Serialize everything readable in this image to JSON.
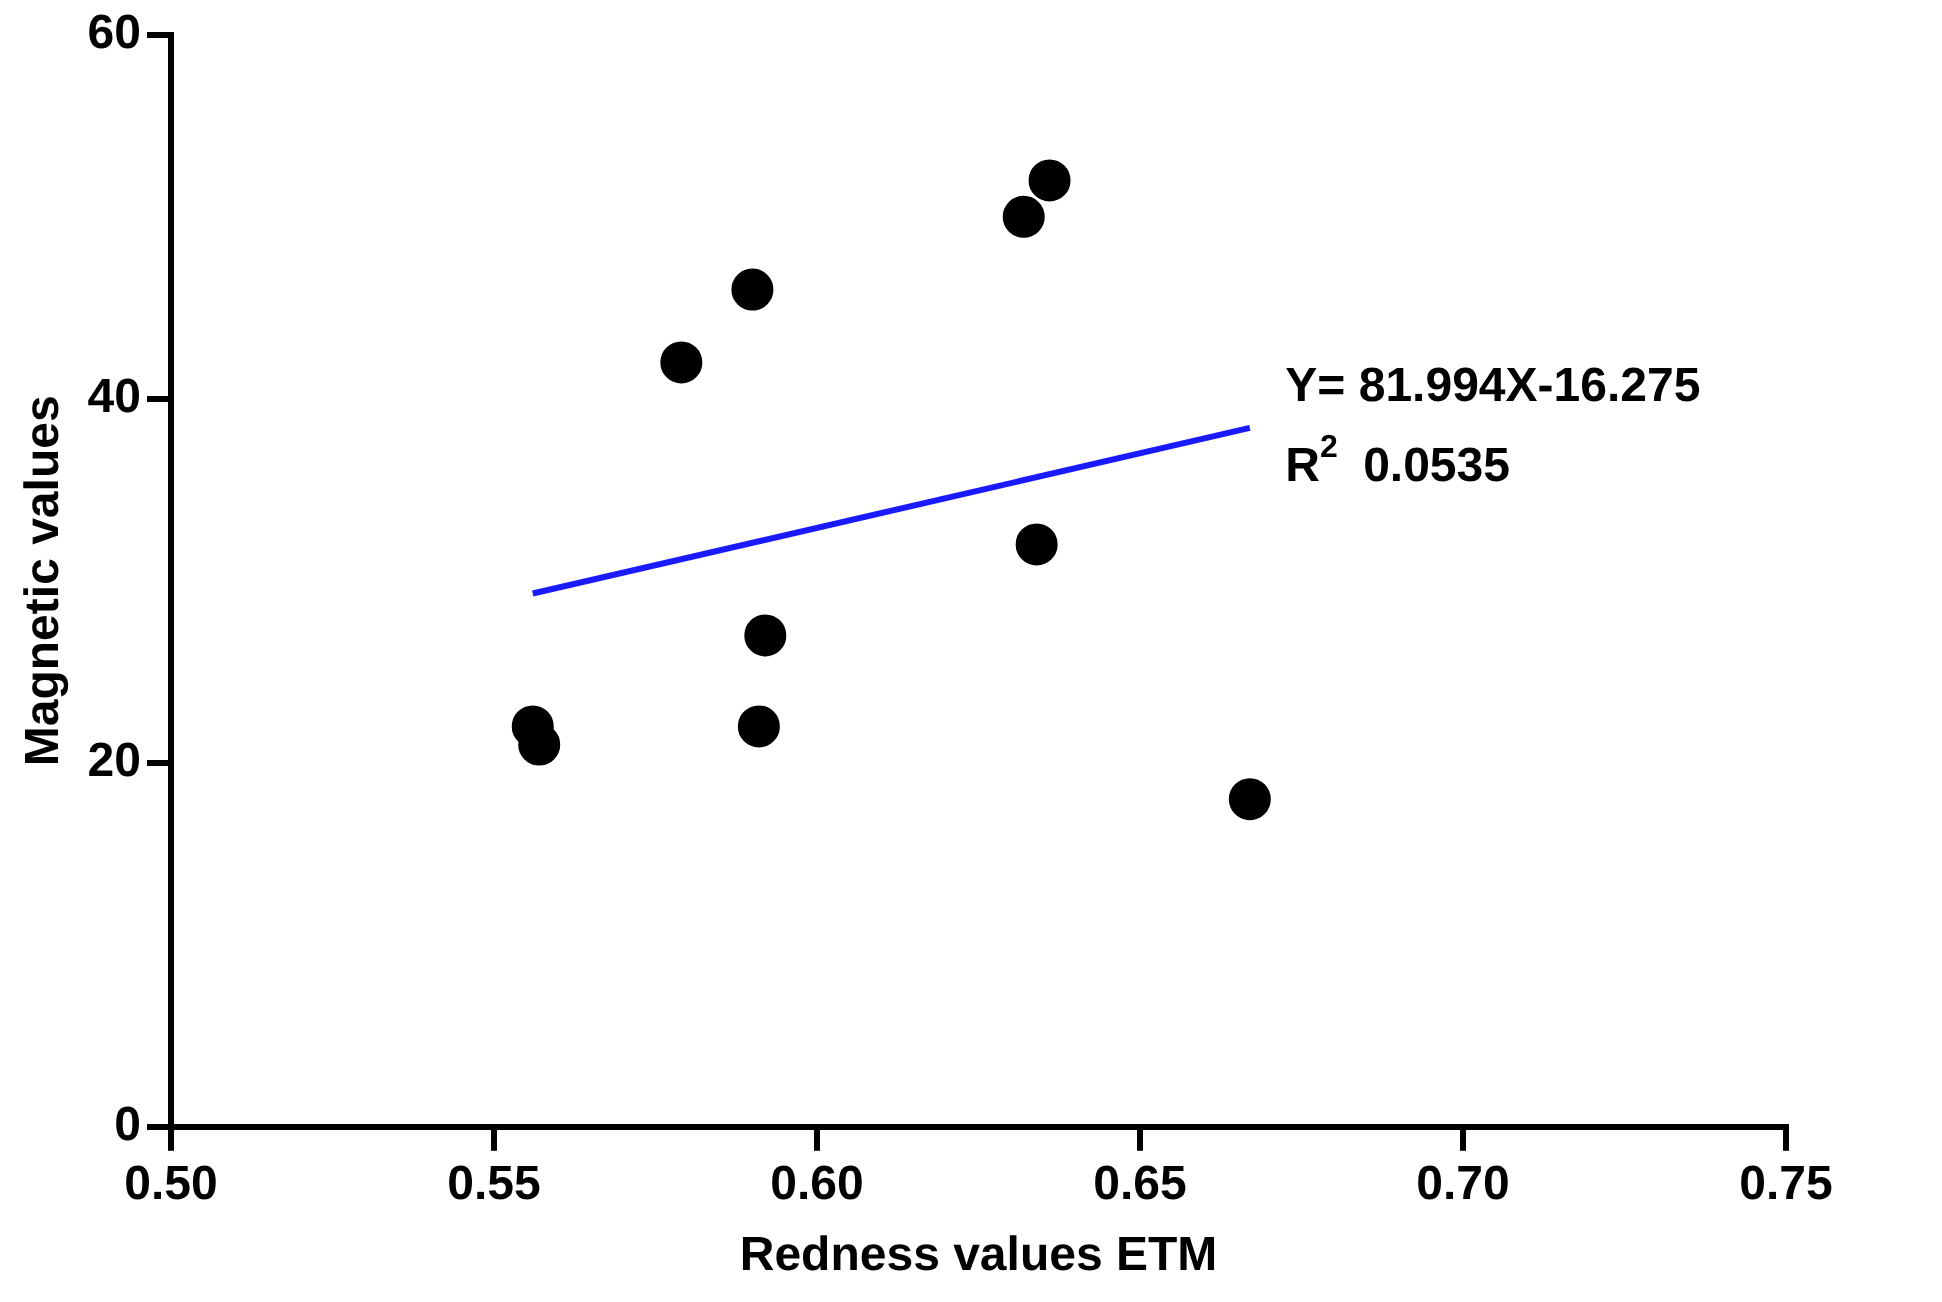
{
  "chart_data": {
    "type": "scatter",
    "xlabel": "Redness values ETM",
    "ylabel": "Magnetic values",
    "xlim": [
      0.5,
      0.75
    ],
    "xticks": [
      {
        "value": 0.5,
        "label": "0.50"
      },
      {
        "value": 0.55,
        "label": "0.55"
      },
      {
        "value": 0.6,
        "label": "0.60"
      },
      {
        "value": 0.65,
        "label": "0.65"
      },
      {
        "value": 0.7,
        "label": "0.70"
      },
      {
        "value": 0.75,
        "label": "0.75"
      }
    ],
    "ylim": [
      0,
      60
    ],
    "yticks": [
      0,
      20,
      40,
      60
    ],
    "grid": false,
    "legend": false,
    "marker": "circle",
    "annotations": [
      "Y= 81.994X-16.275",
      "R$^{2}$ 0.0535"
    ],
    "series": [
      {
        "type": "scatter",
        "color": "#000000",
        "x": [
          0.636,
          0.632,
          0.59,
          0.579,
          0.634,
          0.592,
          0.556,
          0.557,
          0.591,
          0.667
        ],
        "values": [
          52,
          50,
          46,
          42,
          32,
          27,
          22,
          21,
          22,
          18
        ]
      },
      {
        "type": "line",
        "color": "#1a1aff",
        "line_style": "solid",
        "marker": "none",
        "x": [
          0.556,
          0.667
        ],
        "values": [
          29.3,
          38.4
        ]
      }
    ]
  }
}
